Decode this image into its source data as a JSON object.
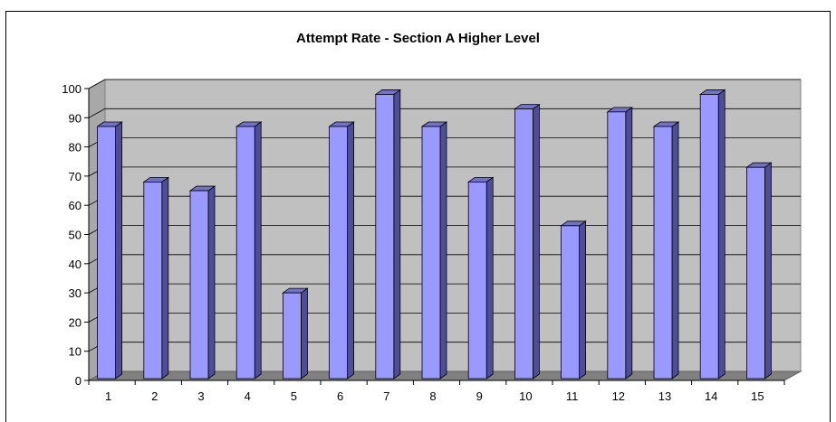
{
  "chart_data": {
    "type": "bar",
    "title": "Attempt Rate - Section A Higher Level",
    "xlabel": "",
    "ylabel": "",
    "categories": [
      "1",
      "2",
      "3",
      "4",
      "5",
      "6",
      "7",
      "8",
      "9",
      "10",
      "11",
      "12",
      "13",
      "14",
      "15"
    ],
    "values": [
      87,
      68,
      65,
      87,
      30,
      87,
      98,
      87,
      68,
      93,
      53,
      92,
      87,
      98,
      73
    ],
    "ylim": [
      0,
      100
    ],
    "yticks": [
      "0",
      "10",
      "20",
      "30",
      "40",
      "50",
      "60",
      "70",
      "80",
      "90",
      "100"
    ],
    "grid": true,
    "legend": "none",
    "style": "3d-column",
    "colors": {
      "bar_front": "#9999ff",
      "bar_side": "#4d4d99",
      "bar_top": "#7373c6",
      "plot_wall": "#c0c0c0",
      "floor": "#808080",
      "gridline": "#000000"
    }
  }
}
